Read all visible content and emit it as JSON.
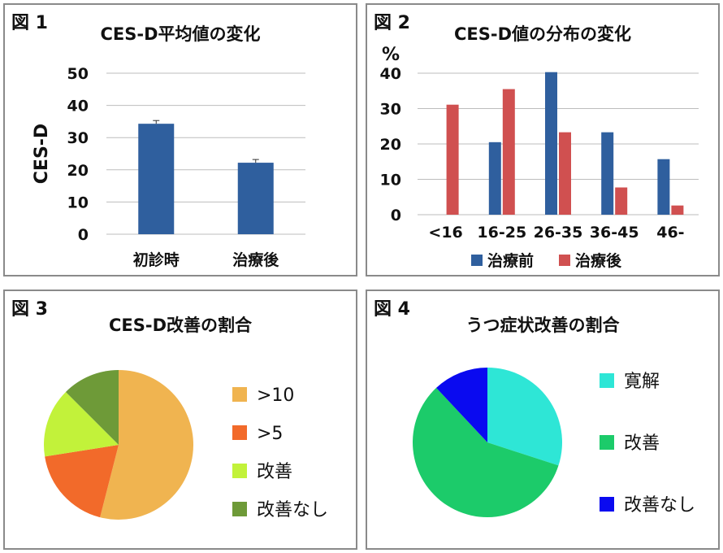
{
  "figures": [
    {
      "label": "図 1",
      "title": "CES-D平均値の変化"
    },
    {
      "label": "図 2",
      "title": "CES-D値の分布の変化"
    },
    {
      "label": "図 3",
      "title": "CES-D改善の割合"
    },
    {
      "label": "図 4",
      "title": "うつ症状改善の割合"
    }
  ],
  "chart_data": [
    {
      "type": "bar",
      "title": "CES-D平均値の変化",
      "ylabel": "CES-D",
      "categories": [
        "初診時",
        "治療後"
      ],
      "values": [
        34.3,
        22.2
      ],
      "error": [
        1.0,
        1.0
      ],
      "ylim": [
        0,
        50
      ],
      "yticks": [
        "0",
        "10",
        "20",
        "30",
        "40",
        "50"
      ],
      "grid": true,
      "colors": [
        "#2f5f9e"
      ]
    },
    {
      "type": "bar",
      "title": "CES-D値の分布の変化",
      "ylabel": "%",
      "categories": [
        "<16",
        "16-25",
        "26-35",
        "36-45",
        "46-"
      ],
      "series": [
        {
          "name": "治療前",
          "values": [
            0,
            20.5,
            40.3,
            23.3,
            15.7
          ],
          "color": "#2f5f9e"
        },
        {
          "name": "治療後",
          "values": [
            31.1,
            35.5,
            23.3,
            7.7,
            2.6
          ],
          "color": "#d05050"
        }
      ],
      "ylim": [
        0,
        40
      ],
      "yticks": [
        "0",
        "10",
        "20",
        "30",
        "40"
      ],
      "grid": true,
      "legend": "bottom"
    },
    {
      "type": "pie",
      "title": "CES-D改善の割合",
      "slices": [
        {
          "label": ">10",
          "value": 54,
          "color": "#f0b450"
        },
        {
          "label": ">5",
          "value": 18.5,
          "color": "#f26a2a"
        },
        {
          "label": "改善",
          "value": 15,
          "color": "#c2f23a"
        },
        {
          "label": "改善なし",
          "value": 12.5,
          "color": "#6e9a38"
        }
      ],
      "legend": "right"
    },
    {
      "type": "pie",
      "title": "うつ症状改善の割合",
      "slices": [
        {
          "label": "寛解",
          "value": 30,
          "color": "#2ee6d6"
        },
        {
          "label": "改善",
          "value": 58,
          "color": "#1ccb6a"
        },
        {
          "label": "改善なし",
          "value": 12,
          "color": "#0a0af0"
        }
      ],
      "legend": "right"
    }
  ]
}
